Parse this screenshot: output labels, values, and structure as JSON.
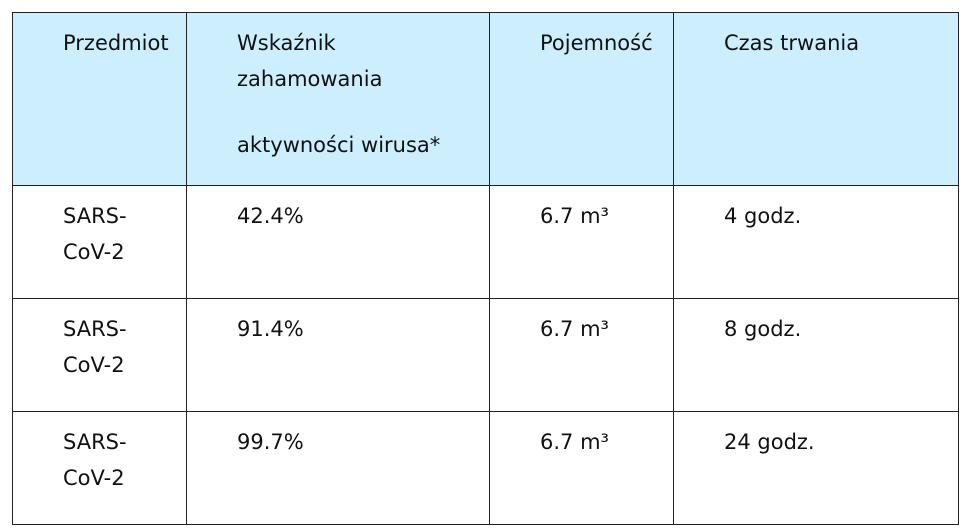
{
  "table": {
    "header": [
      "Przedmiot",
      [
        "Wskaźnik",
        "zahamowania",
        "aktywności wirusa*"
      ],
      "Pojemność",
      "Czas trwania"
    ],
    "rows": [
      [
        "SARS-CoV-2",
        "42.4%",
        "6.7 m³",
        "4 godz."
      ],
      [
        "SARS-CoV-2",
        "91.4%",
        "6.7 m³",
        "8 godz."
      ],
      [
        "SARS-CoV-2",
        "99.7%",
        "6.7 m³",
        "24 godz."
      ]
    ]
  }
}
